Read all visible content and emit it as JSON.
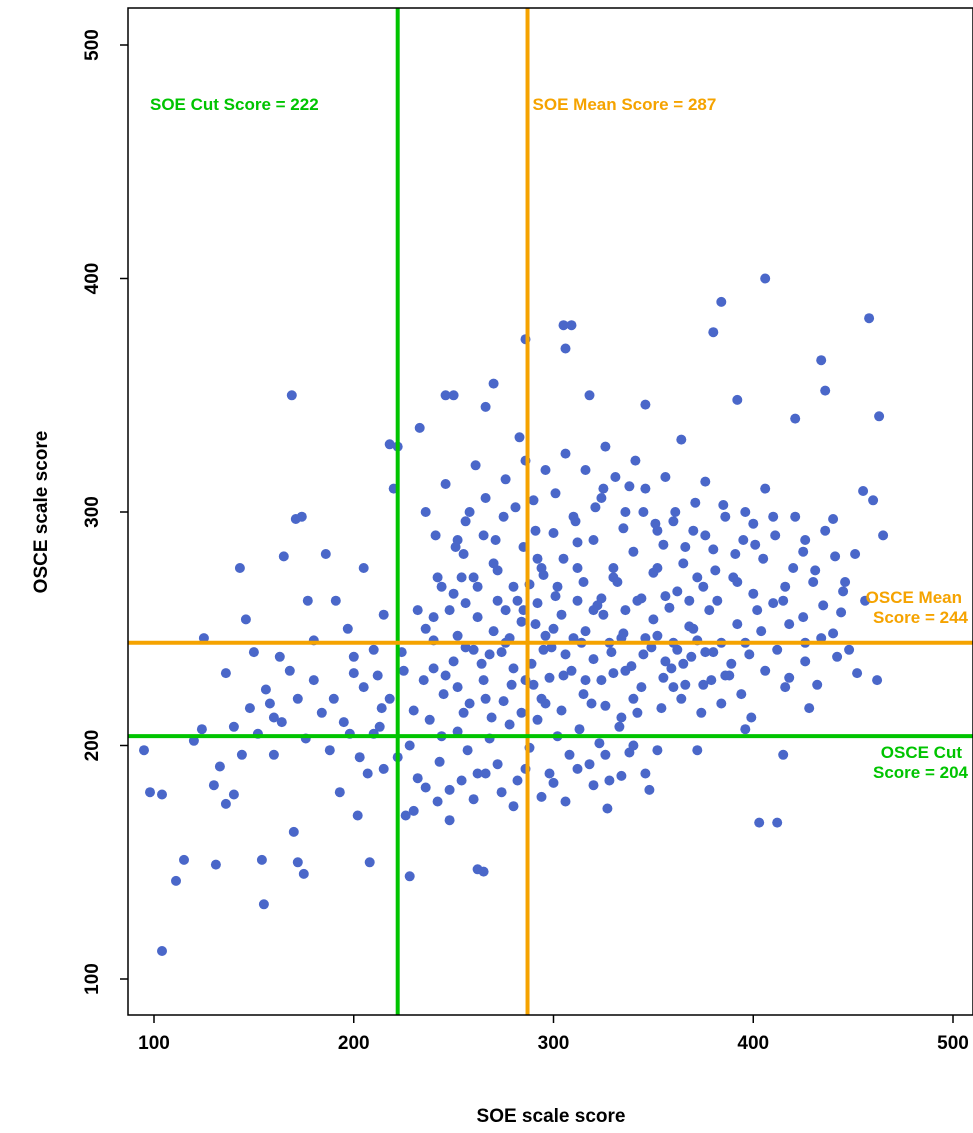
{
  "chart_data": {
    "type": "scatter",
    "title": "",
    "xlabel": "SOE scale score",
    "ylabel": "OSCE scale score",
    "xlim": [
      85,
      510
    ],
    "ylim": [
      85,
      515
    ],
    "x_ticks": [
      100,
      200,
      300,
      400,
      500
    ],
    "y_ticks": [
      100,
      200,
      300,
      400,
      500
    ],
    "grid": false,
    "point_color": "#4a67c9",
    "reference_lines": [
      {
        "orientation": "vertical",
        "value": 222,
        "color": "#00c400",
        "label_lines": [
          "SOE Cut Score = 222"
        ]
      },
      {
        "orientation": "vertical",
        "value": 287,
        "color": "#f5a300",
        "label_lines": [
          "SOE Mean Score = 287"
        ]
      },
      {
        "orientation": "horizontal",
        "value": 244,
        "color": "#f5a300",
        "label_lines": [
          "OSCE Mean",
          "Score = 244"
        ]
      },
      {
        "orientation": "horizontal",
        "value": 204,
        "color": "#00c400",
        "label_lines": [
          "OSCE Cut",
          "Score = 204"
        ]
      }
    ],
    "points": [
      [
        104,
        112
      ],
      [
        95,
        198
      ],
      [
        98,
        180
      ],
      [
        104,
        179
      ],
      [
        111,
        142
      ],
      [
        115,
        151
      ],
      [
        124,
        207
      ],
      [
        120,
        202
      ],
      [
        131,
        149
      ],
      [
        133,
        191
      ],
      [
        136,
        175
      ],
      [
        140,
        179
      ],
      [
        143,
        276
      ],
      [
        146,
        254
      ],
      [
        154,
        151
      ],
      [
        155,
        132
      ],
      [
        160,
        212
      ],
      [
        165,
        281
      ],
      [
        169,
        350
      ],
      [
        171,
        297
      ],
      [
        174,
        298
      ],
      [
        170,
        163
      ],
      [
        172,
        150
      ],
      [
        175,
        145
      ],
      [
        130,
        183
      ],
      [
        125,
        246
      ],
      [
        136,
        231
      ],
      [
        140,
        208
      ],
      [
        150,
        240
      ],
      [
        158,
        218
      ],
      [
        163,
        238
      ],
      [
        177,
        262
      ],
      [
        180,
        245
      ],
      [
        186,
        282
      ],
      [
        191,
        262
      ],
      [
        197,
        250
      ],
      [
        200,
        231
      ],
      [
        202,
        170
      ],
      [
        205,
        276
      ],
      [
        208,
        150
      ],
      [
        213,
        208
      ],
      [
        215,
        256
      ],
      [
        218,
        329
      ],
      [
        220,
        310
      ],
      [
        222,
        328
      ],
      [
        224,
        240
      ],
      [
        226,
        170
      ],
      [
        228,
        144
      ],
      [
        233,
        336
      ],
      [
        236,
        250
      ],
      [
        240,
        233
      ],
      [
        244,
        204
      ],
      [
        246,
        350
      ],
      [
        250,
        350
      ],
      [
        254,
        272
      ],
      [
        258,
        300
      ],
      [
        262,
        147
      ],
      [
        265,
        146
      ],
      [
        266,
        345
      ],
      [
        270,
        355
      ],
      [
        276,
        258
      ],
      [
        283,
        332
      ],
      [
        286,
        374
      ],
      [
        288,
        269
      ],
      [
        291,
        252
      ],
      [
        294,
        276
      ],
      [
        298,
        229
      ],
      [
        301,
        264
      ],
      [
        305,
        380
      ],
      [
        306,
        370
      ],
      [
        309,
        380
      ],
      [
        312,
        287
      ],
      [
        318,
        350
      ],
      [
        320,
        258
      ],
      [
        324,
        306
      ],
      [
        327,
        173
      ],
      [
        330,
        272
      ],
      [
        334,
        246
      ],
      [
        338,
        311
      ],
      [
        342,
        214
      ],
      [
        346,
        346
      ],
      [
        348,
        181
      ],
      [
        352,
        292
      ],
      [
        356,
        264
      ],
      [
        360,
        225
      ],
      [
        364,
        331
      ],
      [
        368,
        251
      ],
      [
        372,
        198
      ],
      [
        376,
        313
      ],
      [
        380,
        377
      ],
      [
        384,
        390
      ],
      [
        388,
        230
      ],
      [
        392,
        348
      ],
      [
        396,
        207
      ],
      [
        400,
        295
      ],
      [
        403,
        167
      ],
      [
        406,
        400
      ],
      [
        410,
        261
      ],
      [
        412,
        167
      ],
      [
        415,
        196
      ],
      [
        418,
        229
      ],
      [
        421,
        340
      ],
      [
        425,
        283
      ],
      [
        428,
        216
      ],
      [
        432,
        226
      ],
      [
        434,
        365
      ],
      [
        436,
        352
      ],
      [
        440,
        297
      ],
      [
        444,
        257
      ],
      [
        448,
        241
      ],
      [
        452,
        231
      ],
      [
        455,
        309
      ],
      [
        458,
        383
      ],
      [
        460,
        305
      ],
      [
        462,
        228
      ],
      [
        463,
        341
      ],
      [
        465,
        290
      ],
      [
        218,
        220
      ],
      [
        225,
        232
      ],
      [
        230,
        215
      ],
      [
        235,
        228
      ],
      [
        240,
        245
      ],
      [
        245,
        222
      ],
      [
        250,
        236
      ],
      [
        255,
        214
      ],
      [
        260,
        241
      ],
      [
        265,
        228
      ],
      [
        270,
        249
      ],
      [
        275,
        219
      ],
      [
        280,
        233
      ],
      [
        285,
        258
      ],
      [
        290,
        226
      ],
      [
        295,
        241
      ],
      [
        300,
        250
      ],
      [
        305,
        230
      ],
      [
        310,
        246
      ],
      [
        315,
        222
      ],
      [
        320,
        237
      ],
      [
        325,
        256
      ],
      [
        330,
        231
      ],
      [
        335,
        248
      ],
      [
        340,
        220
      ],
      [
        345,
        239
      ],
      [
        350,
        254
      ],
      [
        355,
        229
      ],
      [
        360,
        244
      ],
      [
        365,
        235
      ],
      [
        370,
        250
      ],
      [
        375,
        226
      ],
      [
        380,
        240
      ],
      [
        210,
        205
      ],
      [
        215,
        190
      ],
      [
        222,
        195
      ],
      [
        228,
        200
      ],
      [
        232,
        186
      ],
      [
        238,
        211
      ],
      [
        243,
        193
      ],
      [
        248,
        181
      ],
      [
        252,
        206
      ],
      [
        257,
        198
      ],
      [
        262,
        188
      ],
      [
        268,
        203
      ],
      [
        272,
        192
      ],
      [
        278,
        209
      ],
      [
        282,
        185
      ],
      [
        288,
        199
      ],
      [
        292,
        211
      ],
      [
        298,
        188
      ],
      [
        302,
        204
      ],
      [
        308,
        196
      ],
      [
        313,
        207
      ],
      [
        318,
        192
      ],
      [
        323,
        201
      ],
      [
        328,
        185
      ],
      [
        333,
        208
      ],
      [
        338,
        197
      ],
      [
        250,
        265
      ],
      [
        255,
        282
      ],
      [
        260,
        272
      ],
      [
        265,
        290
      ],
      [
        270,
        278
      ],
      [
        275,
        298
      ],
      [
        280,
        268
      ],
      [
        285,
        285
      ],
      [
        290,
        305
      ],
      [
        295,
        273
      ],
      [
        300,
        291
      ],
      [
        305,
        280
      ],
      [
        310,
        298
      ],
      [
        315,
        270
      ],
      [
        320,
        288
      ],
      [
        325,
        310
      ],
      [
        330,
        276
      ],
      [
        335,
        293
      ],
      [
        340,
        283
      ],
      [
        345,
        300
      ],
      [
        350,
        274
      ],
      [
        355,
        286
      ],
      [
        360,
        296
      ],
      [
        365,
        278
      ],
      [
        370,
        292
      ],
      [
        375,
        268
      ],
      [
        380,
        284
      ],
      [
        385,
        303
      ],
      [
        390,
        272
      ],
      [
        395,
        288
      ],
      [
        400,
        265
      ],
      [
        405,
        280
      ],
      [
        410,
        298
      ],
      [
        415,
        262
      ],
      [
        420,
        276
      ],
      [
        425,
        255
      ],
      [
        430,
        270
      ],
      [
        435,
        260
      ],
      [
        440,
        248
      ],
      [
        445,
        266
      ],
      [
        240,
        255
      ],
      [
        244,
        268
      ],
      [
        248,
        258
      ],
      [
        252,
        247
      ],
      [
        256,
        261
      ],
      [
        262,
        255
      ],
      [
        268,
        239
      ],
      [
        272,
        262
      ],
      [
        278,
        246
      ],
      [
        284,
        253
      ],
      [
        292,
        261
      ],
      [
        296,
        247
      ],
      [
        304,
        256
      ],
      [
        312,
        262
      ],
      [
        316,
        249
      ],
      [
        324,
        263
      ],
      [
        328,
        244
      ],
      [
        336,
        258
      ],
      [
        344,
        263
      ],
      [
        352,
        247
      ],
      [
        358,
        259
      ],
      [
        362,
        241
      ],
      [
        368,
        262
      ],
      [
        372,
        245
      ],
      [
        378,
        258
      ],
      [
        384,
        244
      ],
      [
        392,
        252
      ],
      [
        398,
        239
      ],
      [
        404,
        249
      ],
      [
        412,
        241
      ],
      [
        418,
        252
      ],
      [
        426,
        244
      ],
      [
        434,
        246
      ],
      [
        442,
        238
      ],
      [
        190,
        220
      ],
      [
        195,
        210
      ],
      [
        200,
        238
      ],
      [
        205,
        225
      ],
      [
        210,
        241
      ],
      [
        214,
        216
      ],
      [
        188,
        198
      ],
      [
        193,
        180
      ],
      [
        198,
        205
      ],
      [
        203,
        195
      ],
      [
        207,
        188
      ],
      [
        212,
        230
      ],
      [
        180,
        228
      ],
      [
        184,
        214
      ],
      [
        176,
        203
      ],
      [
        172,
        220
      ],
      [
        168,
        232
      ],
      [
        164,
        210
      ],
      [
        160,
        196
      ],
      [
        156,
        224
      ],
      [
        152,
        205
      ],
      [
        148,
        216
      ],
      [
        144,
        196
      ],
      [
        236,
        300
      ],
      [
        241,
        290
      ],
      [
        246,
        312
      ],
      [
        251,
        285
      ],
      [
        256,
        296
      ],
      [
        261,
        320
      ],
      [
        266,
        306
      ],
      [
        271,
        288
      ],
      [
        276,
        314
      ],
      [
        281,
        302
      ],
      [
        286,
        322
      ],
      [
        291,
        292
      ],
      [
        296,
        318
      ],
      [
        301,
        308
      ],
      [
        306,
        325
      ],
      [
        311,
        296
      ],
      [
        316,
        318
      ],
      [
        321,
        302
      ],
      [
        326,
        328
      ],
      [
        331,
        315
      ],
      [
        336,
        300
      ],
      [
        341,
        322
      ],
      [
        346,
        310
      ],
      [
        351,
        295
      ],
      [
        356,
        315
      ],
      [
        361,
        300
      ],
      [
        366,
        285
      ],
      [
        371,
        304
      ],
      [
        376,
        290
      ],
      [
        381,
        275
      ],
      [
        386,
        298
      ],
      [
        391,
        282
      ],
      [
        396,
        300
      ],
      [
        401,
        286
      ],
      [
        406,
        310
      ],
      [
        411,
        290
      ],
      [
        416,
        268
      ],
      [
        421,
        298
      ],
      [
        426,
        288
      ],
      [
        431,
        275
      ],
      [
        436,
        292
      ],
      [
        441,
        281
      ],
      [
        446,
        270
      ],
      [
        451,
        282
      ],
      [
        456,
        262
      ],
      [
        252,
        225
      ],
      [
        258,
        218
      ],
      [
        264,
        235
      ],
      [
        269,
        212
      ],
      [
        274,
        240
      ],
      [
        279,
        226
      ],
      [
        284,
        214
      ],
      [
        289,
        235
      ],
      [
        294,
        220
      ],
      [
        299,
        242
      ],
      [
        304,
        215
      ],
      [
        309,
        232
      ],
      [
        314,
        244
      ],
      [
        319,
        218
      ],
      [
        324,
        228
      ],
      [
        329,
        240
      ],
      [
        334,
        212
      ],
      [
        339,
        234
      ],
      [
        344,
        225
      ],
      [
        349,
        242
      ],
      [
        354,
        216
      ],
      [
        359,
        233
      ],
      [
        364,
        220
      ],
      [
        369,
        238
      ],
      [
        374,
        214
      ],
      [
        379,
        228
      ],
      [
        384,
        218
      ],
      [
        389,
        235
      ],
      [
        394,
        222
      ],
      [
        399,
        212
      ],
      [
        246,
        230
      ],
      [
        256,
        242
      ],
      [
        266,
        220
      ],
      [
        276,
        244
      ],
      [
        286,
        228
      ],
      [
        296,
        218
      ],
      [
        306,
        239
      ],
      [
        316,
        228
      ],
      [
        326,
        217
      ],
      [
        336,
        232
      ],
      [
        346,
        246
      ],
      [
        356,
        236
      ],
      [
        366,
        226
      ],
      [
        376,
        240
      ],
      [
        386,
        230
      ],
      [
        396,
        244
      ],
      [
        406,
        232
      ],
      [
        416,
        225
      ],
      [
        426,
        236
      ],
      [
        232,
        258
      ],
      [
        242,
        272
      ],
      [
        252,
        288
      ],
      [
        262,
        268
      ],
      [
        272,
        275
      ],
      [
        282,
        262
      ],
      [
        292,
        280
      ],
      [
        302,
        268
      ],
      [
        312,
        276
      ],
      [
        322,
        260
      ],
      [
        332,
        270
      ],
      [
        342,
        262
      ],
      [
        352,
        276
      ],
      [
        362,
        266
      ],
      [
        372,
        272
      ],
      [
        382,
        262
      ],
      [
        392,
        270
      ],
      [
        402,
        258
      ],
      [
        230,
        172
      ],
      [
        236,
        182
      ],
      [
        242,
        176
      ],
      [
        248,
        168
      ],
      [
        254,
        185
      ],
      [
        260,
        177
      ],
      [
        266,
        188
      ],
      [
        274,
        180
      ],
      [
        280,
        174
      ],
      [
        286,
        190
      ],
      [
        294,
        178
      ],
      [
        300,
        184
      ],
      [
        306,
        176
      ],
      [
        312,
        190
      ],
      [
        320,
        183
      ],
      [
        326,
        196
      ],
      [
        334,
        187
      ],
      [
        340,
        200
      ],
      [
        346,
        188
      ],
      [
        352,
        198
      ]
    ]
  }
}
